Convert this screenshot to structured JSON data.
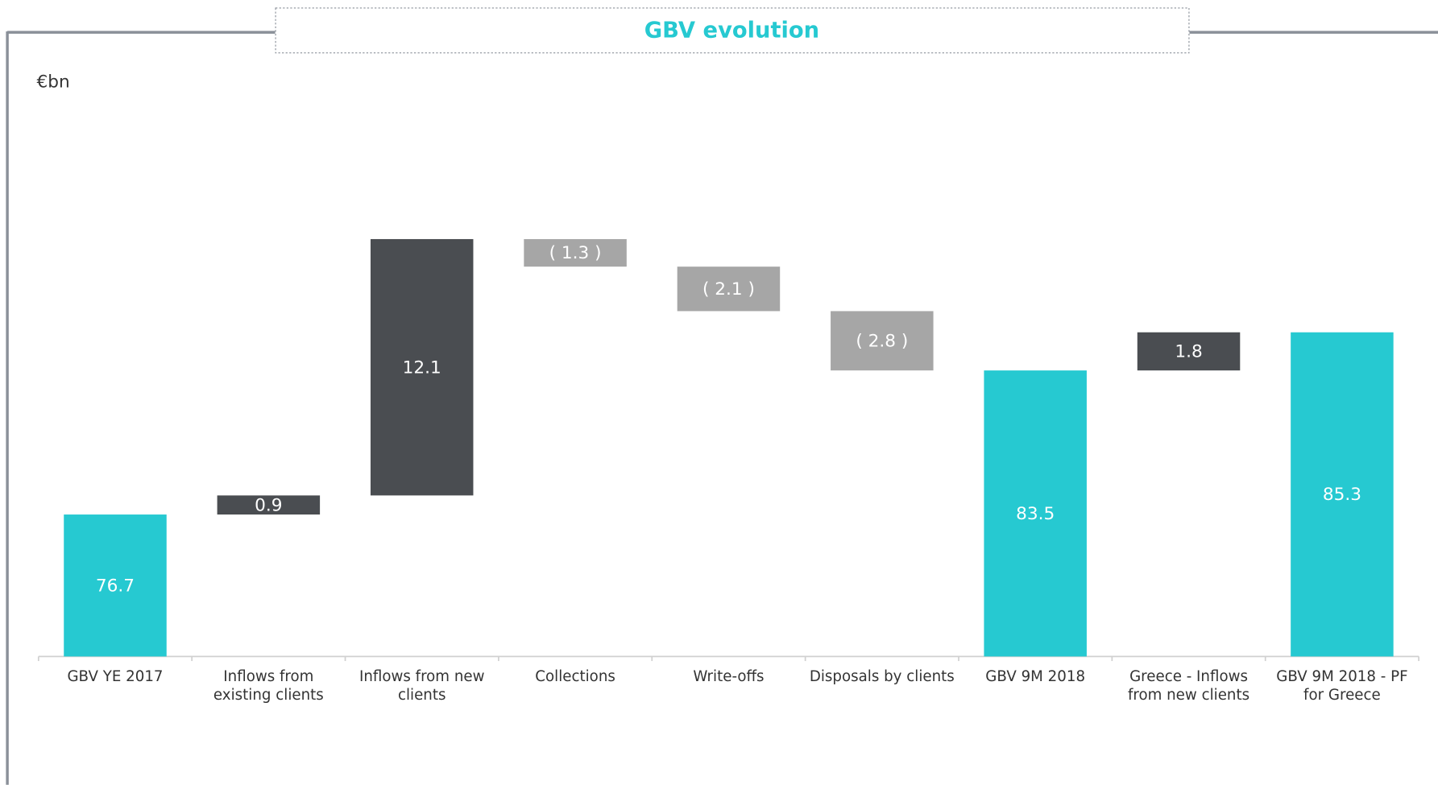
{
  "chart_data": {
    "type": "waterfall",
    "title": "GBV evolution",
    "unit_label": "€bn",
    "categories": [
      "GBV YE 2017",
      "Inflows from existing clients",
      "Inflows from new clients",
      "Collections",
      "Write-offs",
      "Disposals by clients",
      "GBV 9M 2018",
      "Greece - Inflows from new clients",
      "GBV 9M 2018 - PF for Greece"
    ],
    "values": [
      76.7,
      0.9,
      12.1,
      -1.3,
      -2.1,
      -2.8,
      83.5,
      1.8,
      85.3
    ],
    "value_labels": [
      "76.7",
      "0.9",
      "12.1",
      "( 1.3 )",
      "( 2.1 )",
      "( 2.8 )",
      "83.5",
      "1.8",
      "85.3"
    ],
    "measure": [
      "total",
      "relative",
      "relative",
      "relative",
      "relative",
      "relative",
      "total",
      "relative",
      "total"
    ],
    "colors": {
      "total": "#26c9d1",
      "increase": "#4a4d51",
      "decrease": "#a6a6a6"
    },
    "ylim": [
      70,
      96
    ]
  }
}
